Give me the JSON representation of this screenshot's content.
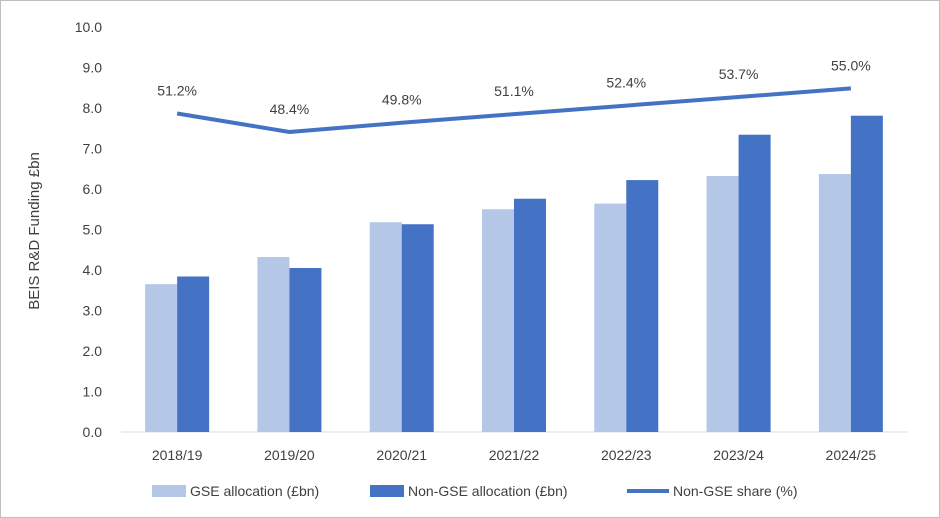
{
  "chart_data": {
    "type": "bar",
    "ylabel": "BEIS R&D Funding £bn",
    "ylim": [
      0,
      10
    ],
    "y_ticks": [
      "0.0",
      "1.0",
      "2.0",
      "3.0",
      "4.0",
      "5.0",
      "6.0",
      "7.0",
      "8.0",
      "9.0",
      "10.0"
    ],
    "categories": [
      "2018/19",
      "2019/20",
      "2020/21",
      "2021/22",
      "2022/23",
      "2023/24",
      "2024/25"
    ],
    "series": [
      {
        "name": "GSE allocation (£bn)",
        "type": "bar",
        "color": "#b4c7e7",
        "values": [
          3.65,
          4.32,
          5.18,
          5.5,
          5.64,
          6.32,
          6.37
        ]
      },
      {
        "name": "Non-GSE allocation (£bn)",
        "type": "bar",
        "color": "#4472c4",
        "values": [
          3.84,
          4.05,
          5.13,
          5.76,
          6.22,
          7.34,
          7.81
        ]
      },
      {
        "name": "Non-GSE share (%)",
        "type": "line",
        "color": "#4472c4",
        "values": [
          51.2,
          48.4,
          49.8,
          51.1,
          52.4,
          53.7,
          55.0
        ],
        "labels": [
          "51.2%",
          "48.4%",
          "49.8%",
          "51.1%",
          "52.4%",
          "53.7%",
          "55.0%"
        ]
      }
    ],
    "grid": false,
    "legend_position": "bottom"
  }
}
